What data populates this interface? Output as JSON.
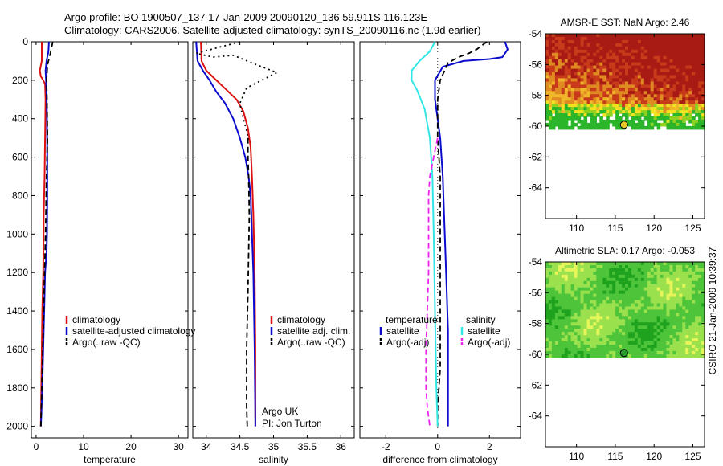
{
  "header": {
    "line1": "Argo profile: BO 1900507_137 17-Jan-2009 20090120_136 59.911S 116.123E",
    "line2": "Climatology: CARS2006. Satellite-adjusted climatology: synTS_20090116.nc (1.9d earlier)"
  },
  "credit": {
    "org": "Argo UK",
    "pi": "PI: Jon Turton"
  },
  "stamp": "CSIRO 21-Jan-2009 10:39:37",
  "colors": {
    "red": "#dd1111",
    "blue": "#0b0bcf",
    "black": "#000000",
    "cyan": "#33e6e6",
    "magenta": "#ee22ee"
  },
  "chart_data": [
    {
      "type": "line",
      "xlabel": "temperature",
      "xlim": [
        -1,
        32
      ],
      "ylim": [
        0,
        2060
      ],
      "xticks": [
        0,
        10,
        20,
        30
      ],
      "yticks": [
        0,
        200,
        400,
        600,
        800,
        1000,
        1200,
        1400,
        1600,
        1800,
        2000
      ],
      "legend": {
        "placement": "lower-right",
        "entries": [
          "climatology",
          "satellite-adjusted climatology",
          "Argo(..raw -QC)"
        ]
      },
      "series": [
        {
          "name": "climatology",
          "color": "red",
          "style": "solid",
          "x": [
            1.2,
            1.2,
            0.8,
            1.0,
            1.5,
            1.9,
            2.0,
            1.9,
            1.8,
            1.6,
            1.5,
            1.3,
            1.2,
            1.1,
            1.0
          ],
          "y": [
            0,
            100,
            150,
            180,
            200,
            220,
            300,
            500,
            700,
            900,
            1200,
            1400,
            1600,
            1800,
            2000
          ]
        },
        {
          "name": "satellite-adjusted climatology",
          "color": "blue",
          "style": "solid",
          "x": [
            2.7,
            2.6,
            2.2,
            2.0,
            2.1,
            2.2,
            2.3,
            2.35,
            2.35,
            2.3,
            2.2,
            1.9,
            1.7,
            1.5,
            1.3,
            1.1,
            1.0
          ],
          "y": [
            0,
            50,
            100,
            150,
            200,
            260,
            400,
            600,
            800,
            1000,
            1100,
            1200,
            1400,
            1600,
            1800,
            1950,
            2000
          ]
        },
        {
          "name": "Argo(..raw -QC)",
          "color": "black",
          "style": "dashed",
          "x": [
            3.5,
            3.2,
            2.8,
            2.4,
            2.2,
            2.3,
            2.4,
            2.2,
            2.0,
            1.8,
            1.5,
            1.2,
            1.0
          ],
          "y": [
            0,
            40,
            80,
            120,
            200,
            300,
            500,
            700,
            1000,
            1200,
            1500,
            1800,
            2000
          ]
        }
      ]
    },
    {
      "type": "line",
      "xlabel": "salinity",
      "xlim": [
        33.8,
        36.2
      ],
      "ylim": [
        0,
        2060
      ],
      "xticks": [
        34,
        34.5,
        35,
        35.5,
        36
      ],
      "xticklabels": [
        "34",
        "34.5",
        "35",
        "35.5",
        "36"
      ],
      "legend": {
        "placement": "lower-right",
        "entries": [
          "climatology",
          "satellite adj. clim.",
          "Argo(..raw -QC)"
        ]
      },
      "series": [
        {
          "name": "climatology",
          "color": "red",
          "style": "solid",
          "x": [
            33.92,
            33.93,
            34.0,
            34.15,
            34.3,
            34.45,
            34.55,
            34.62,
            34.66,
            34.68,
            34.7,
            34.72,
            34.73,
            34.73
          ],
          "y": [
            0,
            100,
            150,
            200,
            250,
            300,
            360,
            450,
            550,
            700,
            900,
            1200,
            1600,
            2000
          ]
        },
        {
          "name": "satellite adj. clim.",
          "color": "blue",
          "style": "solid",
          "x": [
            33.85,
            33.87,
            33.95,
            34.05,
            34.15,
            34.28,
            34.4,
            34.5,
            34.58,
            34.63,
            34.66,
            34.68,
            34.7,
            34.72,
            34.73
          ],
          "y": [
            0,
            100,
            150,
            200,
            260,
            320,
            400,
            500,
            600,
            700,
            800,
            1000,
            1200,
            1600,
            2000
          ]
        },
        {
          "name": "Argo(..raw -QC)",
          "color": "black",
          "style": "dashed",
          "x": [
            34.62,
            34.62,
            34.63,
            34.64,
            34.63,
            34.62,
            34.6,
            34.6,
            34.61
          ],
          "y": [
            500,
            600,
            700,
            900,
            1100,
            1300,
            1600,
            1900,
            2000
          ]
        },
        {
          "name": "Argo raw (upper)",
          "color": "black",
          "style": "dotted",
          "x": [
            34.5,
            33.85,
            34.1,
            34.4,
            34.75,
            35.05,
            34.6,
            34.5,
            34.55,
            34.6,
            34.62
          ],
          "y": [
            0,
            60,
            80,
            70,
            120,
            160,
            240,
            320,
            400,
            460,
            500
          ]
        }
      ]
    },
    {
      "type": "line",
      "xlabel": "difference from climatology",
      "xlim": [
        -3,
        3.2
      ],
      "xticks": [
        -2,
        0,
        2
      ],
      "legend": {
        "placement": "lower-center",
        "temperature_title": "temperature",
        "salinity_title": "salinity",
        "entries": [
          "satellite",
          "Argo(-adj)",
          "satellite",
          "Argo(-adj)"
        ]
      },
      "series": [
        {
          "name": "temperature satellite",
          "color": "blue",
          "style": "solid",
          "x": [
            2.6,
            2.7,
            2.6,
            2.5,
            2.0,
            1.0,
            0.2,
            -0.1,
            -0.1,
            0.0,
            0.1,
            0.2,
            0.25,
            0.3,
            0.35,
            0.4,
            0.4,
            0.4
          ],
          "y": [
            0,
            40,
            60,
            80,
            90,
            100,
            130,
            200,
            300,
            400,
            500,
            700,
            900,
            1100,
            1300,
            1500,
            1700,
            2000
          ]
        },
        {
          "name": "temperature Argo(-adj)",
          "color": "black",
          "style": "dashed",
          "x": [
            1.9,
            1.7,
            1.5,
            1.2,
            0.8,
            0.4,
            0.3,
            0.1,
            0.0,
            0.0,
            0.1,
            0.1,
            0.1,
            0.1,
            0.1,
            0.1,
            0.0,
            0.0
          ],
          "y": [
            0,
            20,
            40,
            60,
            80,
            110,
            140,
            200,
            300,
            500,
            700,
            900,
            1100,
            1300,
            1500,
            1700,
            1900,
            2000
          ]
        },
        {
          "name": "salinity satellite",
          "color": "cyan",
          "style": "solid",
          "x": [
            -0.1,
            -0.3,
            -0.7,
            -1.0,
            -1.0,
            -0.8,
            -0.5,
            -0.3,
            -0.2,
            -0.15,
            -0.1,
            -0.05,
            0.0
          ],
          "y": [
            0,
            50,
            100,
            150,
            200,
            250,
            350,
            500,
            700,
            1000,
            1400,
            1800,
            2000
          ]
        },
        {
          "name": "salinity Argo(-adj)",
          "color": "magenta",
          "style": "dashed",
          "x": [
            0.0,
            -0.15,
            -0.3,
            -0.35,
            -0.35,
            -0.35,
            -0.4,
            -0.45,
            -0.45,
            -0.4,
            -0.35,
            -0.3
          ],
          "y": [
            500,
            600,
            700,
            800,
            1000,
            1200,
            1400,
            1600,
            1800,
            1900,
            1950,
            2000
          ]
        }
      ]
    },
    {
      "type": "heatmap",
      "title": "AMSR-E SST: NaN  Argo: 2.46",
      "xlim": [
        106,
        126.5
      ],
      "ylim": [
        -66,
        -54
      ],
      "xticks": [
        110,
        115,
        120,
        125
      ],
      "yticks": [
        -54,
        -56,
        -58,
        -60,
        -62,
        -64
      ],
      "data_extent_lat": [
        -60.2,
        -54
      ],
      "colormap": [
        "#2bb52b",
        "#8fd11f",
        "#f2e21f",
        "#f0b72a",
        "#e08a22",
        "#c83b1a",
        "#a81a14"
      ],
      "marker": {
        "lon": 116.123,
        "lat": -59.911
      }
    },
    {
      "type": "heatmap",
      "title": "Altimetric SLA: 0.17  Argo: -0.053",
      "xlim": [
        106,
        126.5
      ],
      "ylim": [
        -66,
        -54
      ],
      "xticks": [
        110,
        115,
        120,
        125
      ],
      "yticks": [
        -54,
        -56,
        -58,
        -60,
        -62,
        -64
      ],
      "data_extent_lat": [
        -60.2,
        -54
      ],
      "colormap": [
        "#1fa31f",
        "#4ec43a",
        "#9be14e",
        "#e6f55a"
      ],
      "marker": {
        "lon": 116.123,
        "lat": -59.911
      }
    }
  ]
}
